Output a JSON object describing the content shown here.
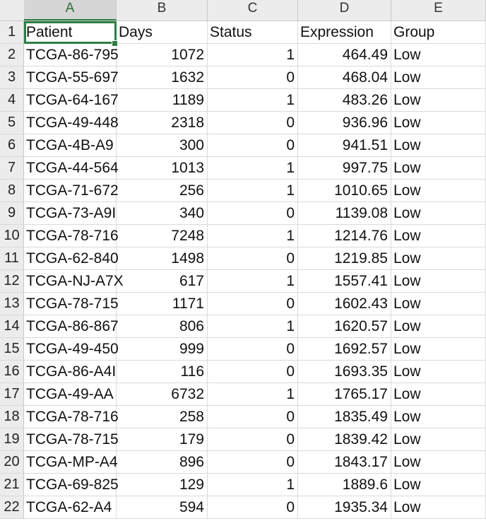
{
  "columns": [
    "A",
    "B",
    "C",
    "D",
    "E"
  ],
  "header_row": {
    "row_number": "1",
    "cells": [
      "Patient",
      "Days",
      "Status",
      "Expression",
      "Group"
    ]
  },
  "rows": [
    {
      "n": "2",
      "cells": [
        "TCGA-86-795",
        "1072",
        "1",
        "464.49",
        "Low"
      ]
    },
    {
      "n": "3",
      "cells": [
        "TCGA-55-697",
        "1632",
        "0",
        "468.04",
        "Low"
      ]
    },
    {
      "n": "4",
      "cells": [
        "TCGA-64-167",
        "1189",
        "1",
        "483.26",
        "Low"
      ]
    },
    {
      "n": "5",
      "cells": [
        "TCGA-49-448",
        "2318",
        "0",
        "936.96",
        "Low"
      ]
    },
    {
      "n": "6",
      "cells": [
        "TCGA-4B-A9",
        "300",
        "0",
        "941.51",
        "Low"
      ]
    },
    {
      "n": "7",
      "cells": [
        "TCGA-44-564",
        "1013",
        "1",
        "997.75",
        "Low"
      ]
    },
    {
      "n": "8",
      "cells": [
        "TCGA-71-672",
        "256",
        "1",
        "1010.65",
        "Low"
      ]
    },
    {
      "n": "9",
      "cells": [
        "TCGA-73-A9I",
        "340",
        "0",
        "1139.08",
        "Low"
      ]
    },
    {
      "n": "10",
      "cells": [
        "TCGA-78-716",
        "7248",
        "1",
        "1214.76",
        "Low"
      ]
    },
    {
      "n": "11",
      "cells": [
        "TCGA-62-840",
        "1498",
        "0",
        "1219.85",
        "Low"
      ]
    },
    {
      "n": "12",
      "cells": [
        "TCGA-NJ-A7X",
        "617",
        "1",
        "1557.41",
        "Low"
      ]
    },
    {
      "n": "13",
      "cells": [
        "TCGA-78-715",
        "1171",
        "0",
        "1602.43",
        "Low"
      ]
    },
    {
      "n": "14",
      "cells": [
        "TCGA-86-867",
        "806",
        "1",
        "1620.57",
        "Low"
      ]
    },
    {
      "n": "15",
      "cells": [
        "TCGA-49-450",
        "999",
        "0",
        "1692.57",
        "Low"
      ]
    },
    {
      "n": "16",
      "cells": [
        "TCGA-86-A4I",
        "116",
        "0",
        "1693.35",
        "Low"
      ]
    },
    {
      "n": "17",
      "cells": [
        "TCGA-49-AA",
        "6732",
        "1",
        "1765.17",
        "Low"
      ]
    },
    {
      "n": "18",
      "cells": [
        "TCGA-78-716",
        "258",
        "0",
        "1835.49",
        "Low"
      ]
    },
    {
      "n": "19",
      "cells": [
        "TCGA-78-715",
        "179",
        "0",
        "1839.42",
        "Low"
      ]
    },
    {
      "n": "20",
      "cells": [
        "TCGA-MP-A4",
        "896",
        "0",
        "1843.17",
        "Low"
      ]
    },
    {
      "n": "21",
      "cells": [
        "TCGA-69-825",
        "129",
        "1",
        "1889.6",
        "Low"
      ]
    },
    {
      "n": "22",
      "cells": [
        "TCGA-62-A4",
        "594",
        "0",
        "1935.34",
        "Low"
      ]
    }
  ],
  "selected_cell": "A1",
  "colors": {
    "selection": "#2d7d46",
    "header_bg": "#ececec",
    "grid": "#dadada"
  }
}
